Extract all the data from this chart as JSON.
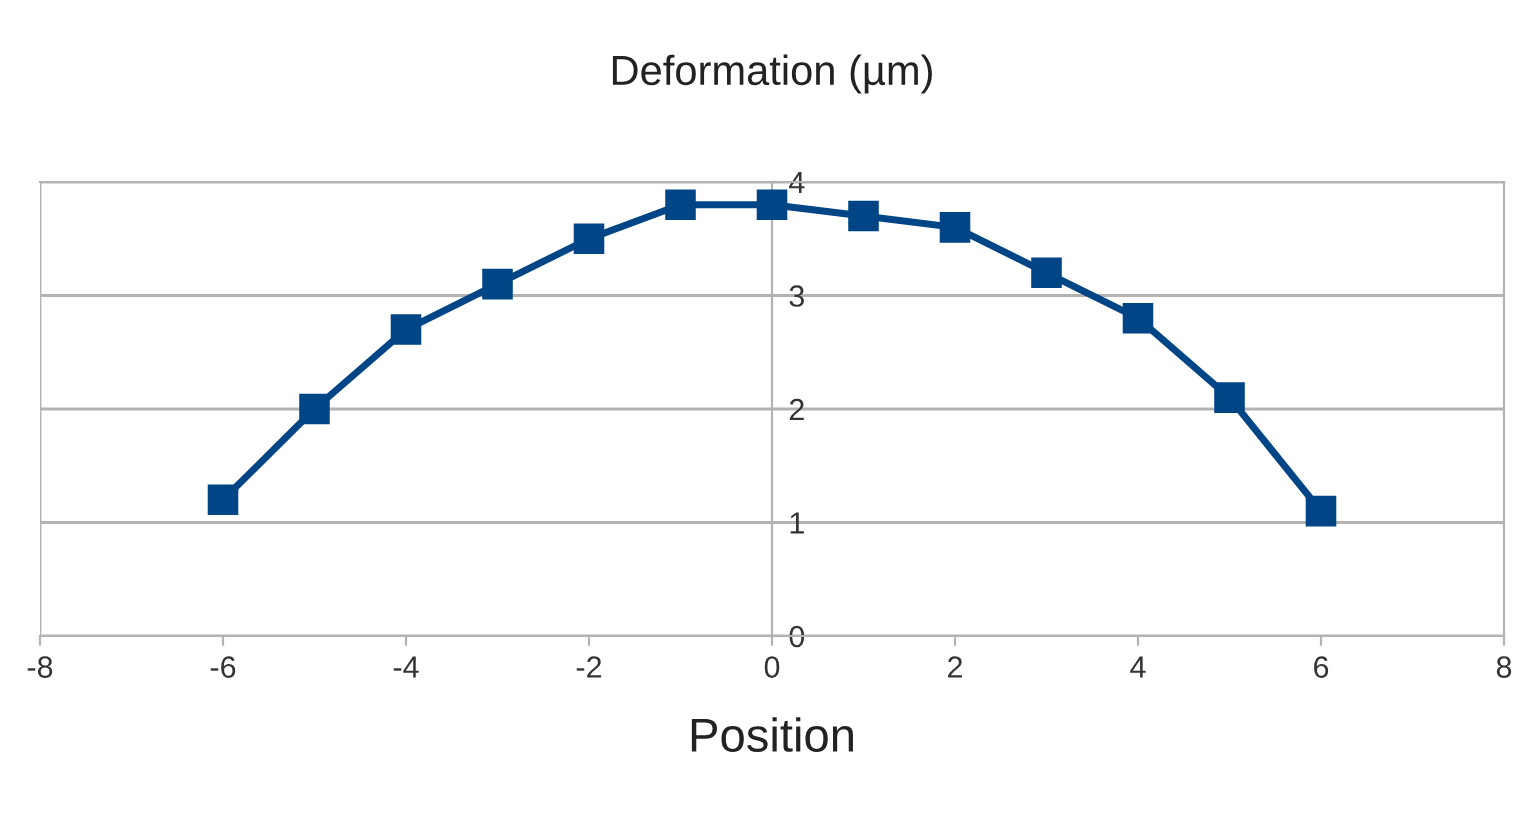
{
  "chart_data": {
    "type": "line",
    "title": "Deformation (µm)",
    "xlabel": "Position",
    "x": [
      -6,
      -5,
      -4,
      -3,
      -2,
      -1,
      0,
      1,
      2,
      3,
      4,
      5,
      6
    ],
    "series": [
      {
        "color": "#004586",
        "values": [
          1.2,
          2.0,
          2.7,
          3.1,
          3.5,
          3.8,
          3.8,
          3.7,
          3.6,
          3.2,
          2.8,
          2.1,
          1.1
        ]
      }
    ],
    "xlim": [
      -8,
      8
    ],
    "xticks": [
      -8,
      -6,
      -4,
      -2,
      0,
      2,
      4,
      6,
      8
    ],
    "ylim": [
      0,
      4
    ],
    "yticks": [
      0,
      1,
      2,
      3,
      4
    ],
    "grid": "y",
    "marker": "square",
    "line_style": "solid",
    "legend": false
  }
}
